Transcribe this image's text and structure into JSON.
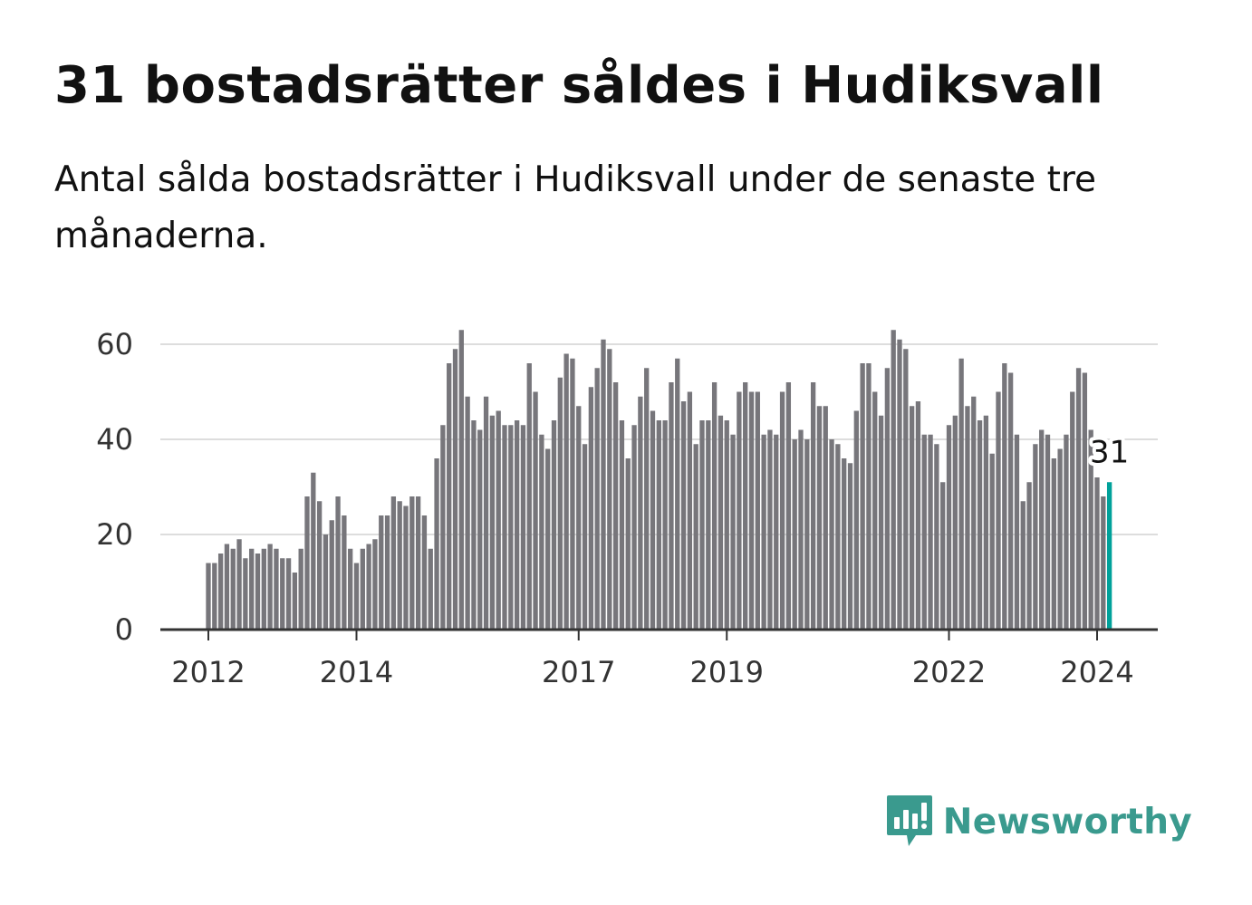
{
  "title": "31 bostadsrätter såldes i Hudiksvall",
  "subtitle": "Antal sålda bostadsrätter i Hudiksvall under de senaste tre månaderna.",
  "brand": {
    "name": "Newsworthy",
    "icon": "newsworthy-bar-chart-logo-icon"
  },
  "colors": {
    "bar": "#77767b",
    "highlight": "#00a19a",
    "grid": "#dddddd",
    "axis": "#333333",
    "brand": "#3a9a8e"
  },
  "chart_data": {
    "type": "bar",
    "title": "",
    "xlabel": "",
    "ylabel": "",
    "x_start": "2012-01",
    "x_ticks": [
      "2012",
      "2014",
      "2017",
      "2019",
      "2022",
      "2024"
    ],
    "y_ticks": [
      "0",
      "20",
      "40",
      "60"
    ],
    "ylim": [
      0,
      70
    ],
    "grid": true,
    "highlight_last": true,
    "last_value_label": "31",
    "values": [
      14,
      14,
      16,
      18,
      17,
      19,
      15,
      17,
      16,
      17,
      18,
      17,
      15,
      15,
      12,
      17,
      28,
      33,
      27,
      20,
      23,
      28,
      24,
      17,
      14,
      17,
      18,
      19,
      24,
      24,
      28,
      27,
      26,
      28,
      28,
      24,
      17,
      36,
      43,
      56,
      59,
      63,
      49,
      44,
      42,
      49,
      45,
      46,
      43,
      43,
      44,
      43,
      56,
      50,
      41,
      38,
      44,
      53,
      58,
      57,
      47,
      39,
      51,
      55,
      61,
      59,
      52,
      44,
      36,
      43,
      49,
      55,
      46,
      44,
      44,
      52,
      57,
      48,
      50,
      39,
      44,
      44,
      52,
      45,
      44,
      41,
      50,
      52,
      50,
      50,
      41,
      42,
      41,
      50,
      52,
      40,
      42,
      40,
      52,
      47,
      47,
      40,
      39,
      36,
      35,
      46,
      56,
      56,
      50,
      45,
      55,
      63,
      61,
      59,
      47,
      48,
      41,
      41,
      39,
      31,
      43,
      45,
      57,
      47,
      49,
      44,
      45,
      37,
      50,
      56,
      54,
      41,
      27,
      31,
      39,
      42,
      41,
      36,
      38,
      41,
      50,
      55,
      54,
      42,
      32,
      28,
      31
    ]
  }
}
